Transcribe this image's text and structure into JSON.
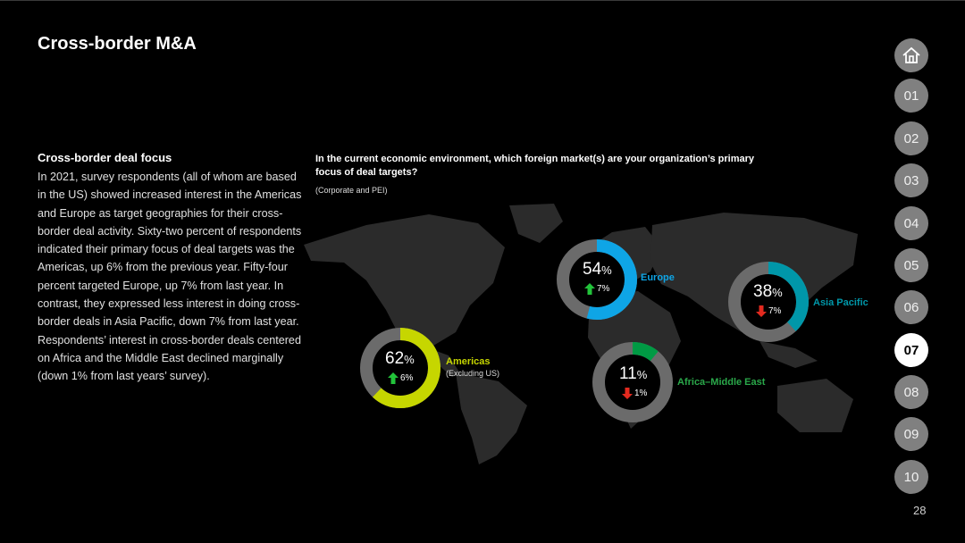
{
  "page_title": "Cross-border M&A",
  "section": {
    "heading": "Cross-border deal focus",
    "body": "In 2021, survey respondents (all of whom are based in the US) showed increased interest in the Americas and Europe as target geographies for their cross-border deal activity. Sixty-two percent of respondents indicated their primary focus of deal targets was the Americas, up 6% from the previous year. Fifty-four percent targeted Europe, up 7% from last year. In contrast, they expressed less interest in doing cross-border deals in Asia Pacific, down 7% from last year. Respondents’ interest in cross-border deals centered on Africa and the Middle East declined marginally (down 1% from last years’ survey)."
  },
  "chart": {
    "question": "In the current economic environment, which foreign market(s) are your organization’s primary focus of deal targets?",
    "subtitle": "(Corporate and PEI)"
  },
  "regions": [
    {
      "key": "americas",
      "label": "Americas",
      "sublabel": "(Excluding US)",
      "value_num": "62",
      "unit": "%",
      "change": "6%",
      "direction": "up",
      "color": "#c6d600"
    },
    {
      "key": "europe",
      "label": "Europe",
      "sublabel": "",
      "value_num": "54",
      "unit": "%",
      "change": "7%",
      "direction": "up",
      "color": "#0ea5e6"
    },
    {
      "key": "asia",
      "label": "Asia Pacific",
      "sublabel": "",
      "value_num": "38",
      "unit": "%",
      "change": "7%",
      "direction": "down",
      "color": "#0097a9"
    },
    {
      "key": "africa",
      "label": "Africa–Middle East",
      "sublabel": "",
      "value_num": "11",
      "unit": "%",
      "change": "1%",
      "direction": "down",
      "color": "#009a44"
    }
  ],
  "chart_data": {
    "type": "pie",
    "title": "In the current economic environment, which foreign market(s) are your organization’s primary focus of deal targets?",
    "categories": [
      "Americas",
      "Europe",
      "Asia Pacific",
      "Africa–Middle East"
    ],
    "values": [
      62,
      54,
      38,
      11
    ],
    "change_vs_prior_year": [
      6,
      7,
      -7,
      -1
    ],
    "unit": "%"
  },
  "colors": {
    "ring_track": "#6b6b6b",
    "up_arrow": "#22c33a",
    "down_arrow": "#e32a1f",
    "map_land": "#2b2b2b"
  },
  "nav": {
    "home_icon": "home-icon",
    "items": [
      "01",
      "02",
      "03",
      "04",
      "05",
      "06",
      "07",
      "08",
      "09",
      "10"
    ],
    "active": "07"
  },
  "page_number": "28"
}
